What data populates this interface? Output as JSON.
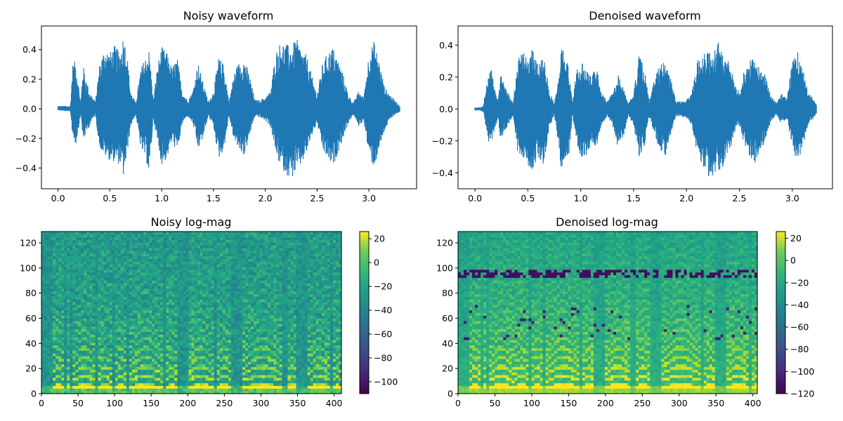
{
  "chart_data": [
    {
      "type": "line",
      "title": "Noisy waveform",
      "xlabel": "",
      "ylabel": "",
      "xlim": [
        -0.16,
        3.46
      ],
      "ylim": [
        -0.54,
        0.56
      ],
      "xticks": [
        "0.0",
        "0.5",
        "1.0",
        "1.5",
        "2.0",
        "2.5",
        "3.0"
      ],
      "yticks": [
        "−0.4",
        "−0.2",
        "0.0",
        "0.2",
        "0.4"
      ],
      "series": [
        {
          "color": "#1f77b4",
          "duration": 3.3,
          "envelope": {
            "t": [
              0.0,
              0.12,
              0.14,
              0.17,
              0.22,
              0.24,
              0.3,
              0.36,
              0.4,
              0.45,
              0.5,
              0.55,
              0.6,
              0.63,
              0.66,
              0.7,
              0.75,
              0.8,
              0.85,
              0.88,
              0.92,
              0.96,
              1.0,
              1.05,
              1.1,
              1.15,
              1.2,
              1.25,
              1.3,
              1.35,
              1.4,
              1.45,
              1.5,
              1.55,
              1.6,
              1.65,
              1.7,
              1.75,
              1.8,
              1.85,
              1.9,
              1.95,
              2.0,
              2.05,
              2.1,
              2.15,
              2.2,
              2.25,
              2.3,
              2.35,
              2.4,
              2.45,
              2.5,
              2.55,
              2.6,
              2.65,
              2.7,
              2.75,
              2.8,
              2.85,
              2.9,
              2.95,
              3.0,
              3.05,
              3.1,
              3.15,
              3.2,
              3.25,
              3.3
            ],
            "upper": [
              0.02,
              0.02,
              0.3,
              0.33,
              0.04,
              0.3,
              0.12,
              0.05,
              0.3,
              0.42,
              0.38,
              0.43,
              0.38,
              0.5,
              0.42,
              0.12,
              0.04,
              0.28,
              0.36,
              0.4,
              0.06,
              0.3,
              0.42,
              0.38,
              0.28,
              0.35,
              0.12,
              0.06,
              0.12,
              0.32,
              0.18,
              0.05,
              0.12,
              0.35,
              0.3,
              0.05,
              0.25,
              0.32,
              0.34,
              0.22,
              0.06,
              0.06,
              0.08,
              0.12,
              0.38,
              0.46,
              0.44,
              0.42,
              0.48,
              0.4,
              0.36,
              0.22,
              0.1,
              0.3,
              0.38,
              0.42,
              0.34,
              0.24,
              0.1,
              0.04,
              0.12,
              0.08,
              0.38,
              0.46,
              0.32,
              0.15,
              0.1,
              0.06,
              0.02
            ],
            "lower": [
              -0.01,
              -0.02,
              -0.18,
              -0.25,
              -0.04,
              -0.22,
              -0.12,
              -0.04,
              -0.26,
              -0.32,
              -0.35,
              -0.36,
              -0.38,
              -0.46,
              -0.35,
              -0.12,
              -0.04,
              -0.28,
              -0.34,
              -0.46,
              -0.06,
              -0.24,
              -0.38,
              -0.34,
              -0.22,
              -0.3,
              -0.1,
              -0.05,
              -0.1,
              -0.28,
              -0.2,
              -0.05,
              -0.12,
              -0.34,
              -0.28,
              -0.05,
              -0.22,
              -0.28,
              -0.32,
              -0.18,
              -0.05,
              -0.06,
              -0.08,
              -0.12,
              -0.3,
              -0.4,
              -0.44,
              -0.48,
              -0.42,
              -0.38,
              -0.3,
              -0.18,
              -0.1,
              -0.28,
              -0.34,
              -0.4,
              -0.3,
              -0.2,
              -0.1,
              -0.04,
              -0.12,
              -0.08,
              -0.32,
              -0.4,
              -0.28,
              -0.15,
              -0.08,
              -0.04,
              -0.02
            ]
          }
        }
      ]
    },
    {
      "type": "line",
      "title": "Denoised waveform",
      "xlabel": "",
      "ylabel": "",
      "xlim": [
        -0.16,
        3.38
      ],
      "ylim": [
        -0.5,
        0.52
      ],
      "xticks": [
        "0.0",
        "0.5",
        "1.0",
        "1.5",
        "2.0",
        "2.5",
        "3.0"
      ],
      "yticks": [
        "−0.4",
        "−0.2",
        "0.0",
        "0.2",
        "0.4"
      ],
      "series": [
        {
          "color": "#1f77b4",
          "duration": 3.23,
          "envelope": {
            "t": [
              0.0,
              0.05,
              0.08,
              0.12,
              0.15,
              0.22,
              0.24,
              0.3,
              0.36,
              0.4,
              0.45,
              0.5,
              0.55,
              0.6,
              0.65,
              0.7,
              0.75,
              0.8,
              0.82,
              0.85,
              0.88,
              0.92,
              0.96,
              1.0,
              1.05,
              1.1,
              1.15,
              1.2,
              1.25,
              1.3,
              1.35,
              1.4,
              1.45,
              1.5,
              1.55,
              1.6,
              1.65,
              1.7,
              1.75,
              1.8,
              1.85,
              1.9,
              1.95,
              2.0,
              2.05,
              2.1,
              2.15,
              2.2,
              2.25,
              2.3,
              2.35,
              2.4,
              2.45,
              2.5,
              2.55,
              2.6,
              2.65,
              2.7,
              2.75,
              2.8,
              2.85,
              2.9,
              2.95,
              3.0,
              3.05,
              3.1,
              3.15,
              3.2,
              3.23
            ],
            "upper": [
              0.01,
              0.01,
              0.02,
              0.22,
              0.26,
              0.05,
              0.24,
              0.12,
              0.04,
              0.3,
              0.36,
              0.34,
              0.38,
              0.3,
              0.36,
              0.12,
              0.04,
              0.24,
              0.46,
              0.28,
              0.32,
              0.05,
              0.24,
              0.3,
              0.26,
              0.2,
              0.28,
              0.1,
              0.05,
              0.1,
              0.22,
              0.14,
              0.04,
              0.1,
              0.34,
              0.26,
              0.05,
              0.2,
              0.28,
              0.3,
              0.2,
              0.05,
              0.05,
              0.06,
              0.1,
              0.3,
              0.4,
              0.38,
              0.34,
              0.42,
              0.38,
              0.3,
              0.18,
              0.1,
              0.26,
              0.32,
              0.3,
              0.28,
              0.2,
              0.08,
              0.04,
              0.1,
              0.06,
              0.3,
              0.36,
              0.26,
              0.12,
              0.06,
              0.04
            ],
            "lower": [
              -0.01,
              -0.01,
              -0.02,
              -0.2,
              -0.22,
              -0.05,
              -0.2,
              -0.12,
              -0.04,
              -0.26,
              -0.3,
              -0.36,
              -0.38,
              -0.3,
              -0.36,
              -0.12,
              -0.04,
              -0.28,
              -0.4,
              -0.3,
              -0.36,
              -0.05,
              -0.2,
              -0.3,
              -0.3,
              -0.22,
              -0.26,
              -0.1,
              -0.05,
              -0.1,
              -0.24,
              -0.2,
              -0.04,
              -0.1,
              -0.3,
              -0.24,
              -0.05,
              -0.18,
              -0.26,
              -0.3,
              -0.16,
              -0.05,
              -0.05,
              -0.06,
              -0.1,
              -0.28,
              -0.36,
              -0.42,
              -0.44,
              -0.4,
              -0.36,
              -0.28,
              -0.16,
              -0.1,
              -0.24,
              -0.3,
              -0.34,
              -0.28,
              -0.18,
              -0.08,
              -0.04,
              -0.1,
              -0.06,
              -0.28,
              -0.34,
              -0.24,
              -0.1,
              -0.06,
              -0.03
            ]
          }
        }
      ]
    },
    {
      "type": "heatmap",
      "title": "Noisy log-mag",
      "xlabel": "",
      "ylabel": "",
      "xlim": [
        0,
        410
      ],
      "ylim": [
        0,
        129
      ],
      "xticks": [
        "0",
        "50",
        "100",
        "150",
        "200",
        "250",
        "300",
        "350",
        "400"
      ],
      "yticks": [
        "0",
        "20",
        "40",
        "60",
        "80",
        "100",
        "120"
      ],
      "colorbar": {
        "min": -110,
        "max": 26,
        "ticks": [
          "20",
          "0",
          "−20",
          "−40",
          "−60",
          "−80",
          "−100"
        ]
      },
      "colormap": "viridis",
      "voiced_segments": [
        [
          15,
          30
        ],
        [
          33,
          38
        ],
        [
          42,
          75
        ],
        [
          78,
          95
        ],
        [
          100,
          115
        ],
        [
          120,
          165
        ],
        [
          170,
          185
        ],
        [
          200,
          235
        ],
        [
          240,
          260
        ],
        [
          275,
          330
        ],
        [
          335,
          350
        ],
        [
          365,
          395
        ],
        [
          400,
          410
        ]
      ]
    },
    {
      "type": "heatmap",
      "title": "Denoised log-mag",
      "xlabel": "",
      "ylabel": "",
      "xlim": [
        0,
        406
      ],
      "ylim": [
        0,
        129
      ],
      "xticks": [
        "0",
        "50",
        "100",
        "150",
        "200",
        "250",
        "300",
        "350",
        "400"
      ],
      "yticks": [
        "0",
        "20",
        "40",
        "60",
        "80",
        "100",
        "120"
      ],
      "colorbar": {
        "min": -120,
        "max": 26,
        "ticks": [
          "20",
          "0",
          "−20",
          "−40",
          "−60",
          "−80",
          "−100",
          "−120"
        ]
      },
      "colormap": "viridis",
      "voiced_segments": [
        [
          15,
          30
        ],
        [
          33,
          38
        ],
        [
          42,
          75
        ],
        [
          78,
          95
        ],
        [
          100,
          115
        ],
        [
          120,
          165
        ],
        [
          170,
          185
        ],
        [
          200,
          235
        ],
        [
          240,
          260
        ],
        [
          275,
          330
        ],
        [
          335,
          350
        ],
        [
          365,
          395
        ],
        [
          400,
          406
        ]
      ],
      "dropout_row": 96
    }
  ]
}
